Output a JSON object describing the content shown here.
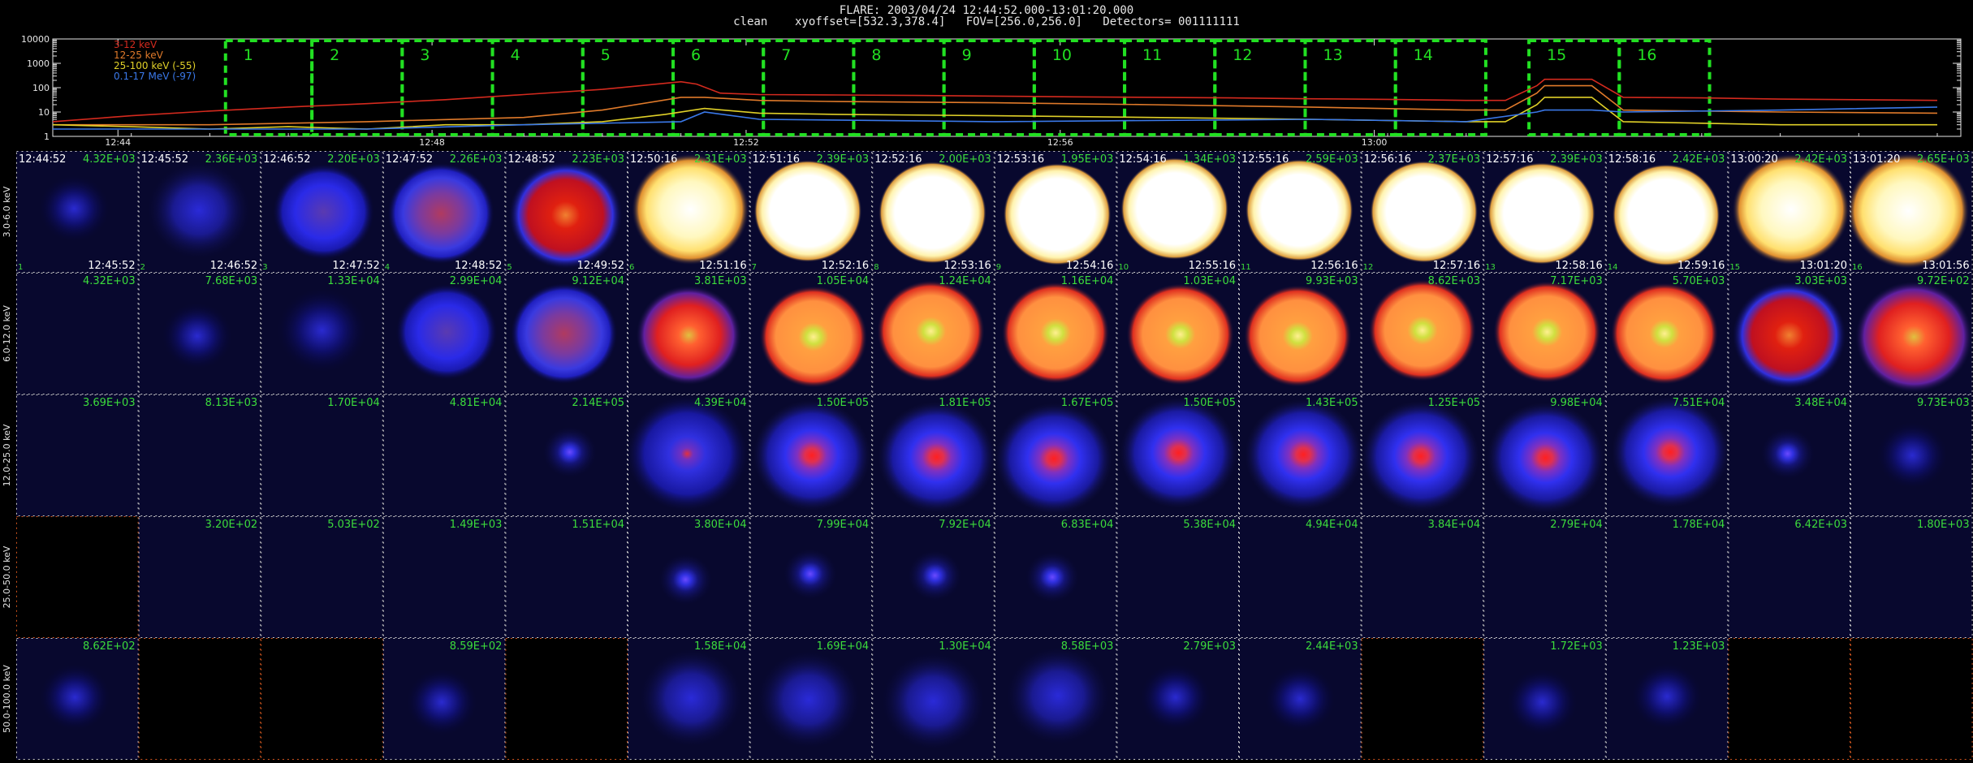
{
  "header": {
    "line1": "FLARE: 2003/04/24 12:44:52.000-13:01:20.000",
    "line2": "clean    xyoffset=[532.3,378.4]   FOV=[256.0,256.0]   Detectors= 001111111"
  },
  "colors": {
    "background": "#000000",
    "curve_3_12": "#d42a1e",
    "curve_12_25": "#e07a2a",
    "curve_25_100": "#e0d028",
    "curve_01_17": "#3a78e8",
    "interval_box": "#22e022",
    "tile_border": "#c8c8c8",
    "tile_border_empty": "#d2561e",
    "label_white": "#ffffff",
    "label_green": "#3cdc3c"
  },
  "chart_data": [
    {
      "type": "line",
      "title": "",
      "y_scale": "log",
      "ylim": [
        1,
        10000
      ],
      "y_ticks": [
        "10000",
        "1000",
        "100",
        "10",
        "1"
      ],
      "x_ticks": [
        "12:44",
        "12:48",
        "12:52",
        "12:56",
        "13:00"
      ],
      "legend": [
        {
          "label": "3-12 keV",
          "color": "#d42a1e"
        },
        {
          "label": "12-25 keV",
          "color": "#e07a2a"
        },
        {
          "label": "25-100 keV (-55)",
          "color": "#e0d028"
        },
        {
          "label": "0.1-17 MeV (-97)",
          "color": "#3a78e8"
        }
      ],
      "legend_position": "top-left",
      "intervals": [
        "1",
        "2",
        "3",
        "4",
        "5",
        "6",
        "7",
        "8",
        "9",
        "10",
        "11",
        "12",
        "13",
        "14",
        "15",
        "16"
      ],
      "x_minutes_range": [
        0,
        20
      ],
      "interval_minutes": [
        [
          2.2,
          3.3
        ],
        [
          3.3,
          4.45
        ],
        [
          4.45,
          5.6
        ],
        [
          5.6,
          6.75
        ],
        [
          6.75,
          7.9
        ],
        [
          7.9,
          9.05
        ],
        [
          9.05,
          10.2
        ],
        [
          10.2,
          11.35
        ],
        [
          11.35,
          12.5
        ],
        [
          12.5,
          13.65
        ],
        [
          13.65,
          14.8
        ],
        [
          14.8,
          15.95
        ],
        [
          15.95,
          17.1
        ],
        [
          17.1,
          18.25
        ],
        [
          18.8,
          19.95
        ],
        [
          19.95,
          21.1
        ]
      ],
      "series": [
        {
          "name": "3-12 keV",
          "color": "#d42a1e",
          "minutes": [
            0,
            1,
            2,
            3,
            4,
            5,
            6,
            7,
            8,
            8.2,
            8.5,
            9,
            10,
            11,
            12,
            13,
            14,
            15,
            16,
            17,
            18,
            18.5,
            18.9,
            19,
            19.6,
            20,
            21,
            22,
            23,
            24
          ],
          "values": [
            4,
            7,
            11,
            16,
            22,
            32,
            52,
            85,
            175,
            140,
            60,
            52,
            50,
            48,
            45,
            42,
            40,
            38,
            35,
            33,
            30,
            30,
            120,
            220,
            220,
            40,
            38,
            34,
            32,
            30
          ]
        },
        {
          "name": "12-25 keV",
          "color": "#e07a2a",
          "minutes": [
            0,
            2,
            4,
            6,
            7,
            8,
            8.3,
            9,
            10,
            12,
            14,
            16,
            18,
            18.5,
            18.9,
            19,
            19.6,
            20,
            22,
            24
          ],
          "values": [
            3,
            3,
            4,
            6,
            12,
            40,
            40,
            30,
            27,
            24,
            20,
            16,
            12,
            12,
            60,
            120,
            120,
            12,
            10,
            9
          ]
        },
        {
          "name": "25-100 keV (-55)",
          "color": "#e0d028",
          "minutes": [
            0,
            1,
            2,
            3,
            4,
            5,
            6,
            7,
            7.8,
            8.3,
            9,
            10,
            12,
            14,
            16,
            18,
            18.5,
            18.9,
            19,
            19.6,
            20,
            22,
            24
          ],
          "values": [
            3,
            2.5,
            2,
            2.5,
            2,
            3,
            3,
            4,
            8,
            14,
            9,
            8,
            7,
            6,
            5,
            4,
            4,
            20,
            40,
            40,
            4,
            3,
            3
          ]
        },
        {
          "name": "0.1-17 MeV (-97)",
          "color": "#3a78e8",
          "minutes": [
            0,
            2,
            4,
            6,
            8,
            8.3,
            9,
            12,
            16,
            18,
            18.9,
            19,
            19.6,
            20,
            22,
            24
          ],
          "values": [
            2,
            2,
            2,
            3,
            4,
            10,
            5,
            4,
            5,
            4,
            10,
            12,
            12,
            10,
            12,
            16
          ]
        }
      ]
    },
    {
      "type": "heatmap",
      "title": "",
      "rows": [
        "3.0-6.0 keV",
        "6.0-12.0 keV",
        "12.0-25.0 keV",
        "25.0-50.0 keV",
        "50.0-100.0 keV"
      ],
      "start_times": [
        "12:44:52",
        "12:45:52",
        "12:46:52",
        "12:47:52",
        "12:48:52",
        "12:50:16",
        "12:51:16",
        "12:52:16",
        "12:53:16",
        "12:54:16",
        "12:55:16",
        "12:56:16",
        "12:57:16",
        "12:58:16",
        "13:00:20",
        "13:01:20"
      ],
      "end_times": [
        "12:45:52",
        "12:46:52",
        "12:47:52",
        "12:48:52",
        "12:49:52",
        "12:51:16",
        "12:52:16",
        "12:53:16",
        "12:54:16",
        "12:55:16",
        "12:56:16",
        "12:57:16",
        "12:58:16",
        "12:59:16",
        "13:01:20",
        "13:01:56"
      ],
      "values": [
        [
          "4.32E+03",
          "2.36E+03",
          "2.20E+03",
          "2.26E+03",
          "2.23E+03",
          "2.31E+03",
          "2.39E+03",
          "2.00E+03",
          "1.95E+03",
          "1.34E+03",
          "2.59E+03",
          "2.37E+03",
          "2.39E+03",
          "2.42E+03",
          "2.42E+03",
          "2.65E+03"
        ],
        [
          "4.32E+03",
          "7.68E+03",
          "1.33E+04",
          "2.99E+04",
          "9.12E+04",
          "3.81E+03",
          "1.05E+04",
          "1.24E+04",
          "1.16E+04",
          "1.03E+04",
          "9.93E+03",
          "8.62E+03",
          "7.17E+03",
          "5.70E+03",
          "3.03E+03",
          "9.72E+02"
        ],
        [
          "3.69E+03",
          "8.13E+03",
          "1.70E+04",
          "4.81E+04",
          "2.14E+05",
          "4.39E+04",
          "1.50E+05",
          "1.81E+05",
          "1.67E+05",
          "1.50E+05",
          "1.43E+05",
          "1.25E+05",
          "9.98E+04",
          "7.51E+04",
          "3.48E+04",
          "9.73E+03"
        ],
        [
          "",
          "3.20E+02",
          "5.03E+02",
          "1.49E+03",
          "1.51E+04",
          "3.80E+04",
          "7.99E+04",
          "7.92E+04",
          "6.83E+04",
          "5.38E+04",
          "4.94E+04",
          "3.84E+04",
          "2.79E+04",
          "1.78E+04",
          "6.42E+03",
          "1.80E+03"
        ],
        [
          "8.62E+02",
          "",
          "",
          "8.59E+02",
          "",
          "1.58E+04",
          "1.69E+04",
          "1.30E+04",
          "8.58E+03",
          "2.79E+03",
          "2.44E+03",
          "",
          "1.72E+03",
          "1.23E+03",
          "",
          ""
        ]
      ]
    }
  ],
  "image_tiles": [
    [
      "faint-blue",
      "blue-speckle",
      "blue-disk",
      "purple-ring",
      "red-disk",
      "yellow-white",
      "white",
      "white",
      "white",
      "white",
      "white",
      "white",
      "white",
      "white",
      "yellow-white",
      "yellow-speckle"
    ],
    [
      "empty",
      "faint-blue",
      "blue-faint-disk",
      "blue-disk",
      "purple-ring",
      "red-blob",
      "orange-core",
      "orange-core",
      "orange-core",
      "orange-core",
      "orange-core",
      "orange-core",
      "orange-core",
      "orange-core",
      "red-disk",
      "red-speckle"
    ],
    [
      "empty",
      "empty",
      "empty",
      "empty",
      "blue-dot",
      "blue-spread",
      "red-core",
      "red-core",
      "red-core",
      "red-core",
      "red-core",
      "red-core",
      "red-core",
      "red-core",
      "blue-dot",
      "faint-blue"
    ],
    [
      "black",
      "empty",
      "empty",
      "empty",
      "empty",
      "blue-dot",
      "blue-dot",
      "blue-dot",
      "blue-dot",
      "empty",
      "empty",
      "empty",
      "empty",
      "empty",
      "empty",
      "empty"
    ],
    [
      "faint-blue",
      "black",
      "black",
      "faint-blue",
      "black",
      "blue-speckle",
      "blue-speckle",
      "blue-speckle",
      "blue-speckle",
      "faint-blue",
      "faint-blue",
      "black",
      "faint-blue",
      "faint-blue",
      "black",
      "black"
    ]
  ]
}
